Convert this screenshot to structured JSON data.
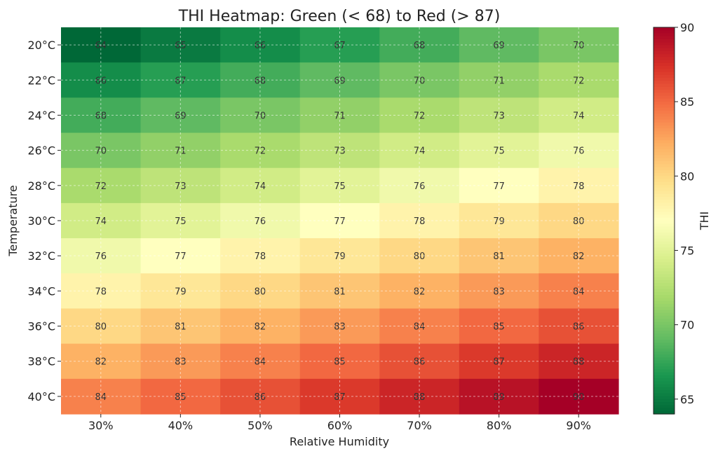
{
  "chart_data": {
    "type": "heatmap",
    "title": "THI Heatmap: Green (< 68) to Red (> 87)",
    "xlabel": "Relative Humidity",
    "ylabel": "Temperature",
    "x_categories": [
      "30%",
      "40%",
      "50%",
      "60%",
      "70%",
      "80%",
      "90%"
    ],
    "y_categories": [
      "20°C",
      "22°C",
      "24°C",
      "26°C",
      "28°C",
      "30°C",
      "32°C",
      "34°C",
      "36°C",
      "38°C",
      "40°C"
    ],
    "values": [
      [
        64,
        65,
        66,
        67,
        68,
        69,
        70
      ],
      [
        66,
        67,
        68,
        69,
        70,
        71,
        72
      ],
      [
        68,
        69,
        70,
        71,
        72,
        73,
        74
      ],
      [
        70,
        71,
        72,
        73,
        74,
        75,
        76
      ],
      [
        72,
        73,
        74,
        75,
        76,
        77,
        78
      ],
      [
        74,
        75,
        76,
        77,
        78,
        79,
        80
      ],
      [
        76,
        77,
        78,
        79,
        80,
        81,
        82
      ],
      [
        78,
        79,
        80,
        81,
        82,
        83,
        84
      ],
      [
        80,
        81,
        82,
        83,
        84,
        85,
        86
      ],
      [
        82,
        83,
        84,
        85,
        86,
        87,
        88
      ],
      [
        84,
        85,
        86,
        87,
        88,
        89,
        90
      ]
    ],
    "colorbar": {
      "label": "THI",
      "range": [
        64,
        90
      ],
      "ticks": [
        65,
        70,
        75,
        80,
        85,
        90
      ],
      "colormap": "RdYlGn_r"
    },
    "grid": true,
    "colors": [
      "#006837",
      "#1a9850",
      "#66bd63",
      "#a6d96a",
      "#d9ef8b",
      "#ffffbf",
      "#fee08b",
      "#fdae61",
      "#f46d43",
      "#d73027",
      "#a50026"
    ]
  }
}
